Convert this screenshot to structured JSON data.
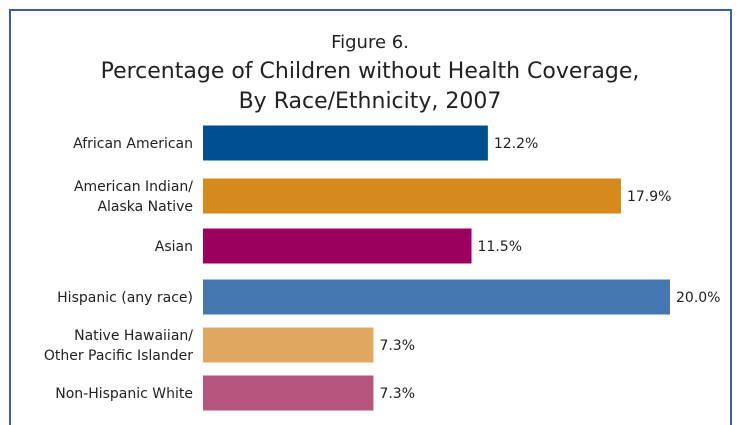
{
  "chart_data": {
    "type": "bar",
    "orientation": "horizontal",
    "title": [
      "Figure 6.",
      "Percentage of Children without Health Coverage,",
      "By Race/Ethnicity, 2007"
    ],
    "categories": [
      [
        "African American"
      ],
      [
        "American Indian/",
        "Alaska Native"
      ],
      [
        "Asian"
      ],
      [
        "Hispanic (any race)"
      ],
      [
        "Native Hawaiian/",
        "Other Pacific Islander"
      ],
      [
        "Non-Hispanic White"
      ]
    ],
    "values": [
      12.2,
      17.9,
      11.5,
      20.0,
      7.3,
      7.3
    ],
    "value_labels": [
      "12.2%",
      "17.9%",
      "11.5%",
      "20.0%",
      "7.3%",
      "7.3%"
    ],
    "bar_colors": [
      "#004f92",
      "#d68a1e",
      "#9c005e",
      "#4477b0",
      "#e2a75e",
      "#b7557e"
    ],
    "frame_color": "#3a5fa0",
    "xlim": [
      0,
      20
    ],
    "grid": false,
    "legend": "none"
  }
}
